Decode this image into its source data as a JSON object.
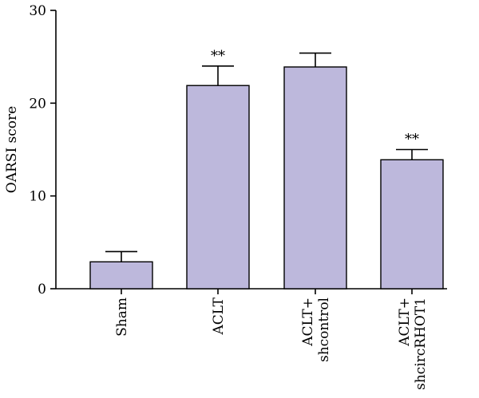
{
  "chart_data": {
    "type": "bar",
    "title": "",
    "xlabel": "",
    "ylabel": "OARSI score",
    "ylim": [
      0,
      30
    ],
    "yticks": [
      0,
      10,
      20,
      30
    ],
    "grid": false,
    "bar_color": "#bdb8dc",
    "categories": [
      [
        "Sham"
      ],
      [
        "ACLT"
      ],
      [
        "ACLT+",
        "shcontrol"
      ],
      [
        "ACLT+",
        "shcircRHOT1"
      ]
    ],
    "values": [
      2.9,
      21.9,
      23.9,
      13.9
    ],
    "errors": [
      1.1,
      2.1,
      1.5,
      1.1
    ],
    "significance": [
      "",
      "**",
      "",
      "**"
    ]
  }
}
